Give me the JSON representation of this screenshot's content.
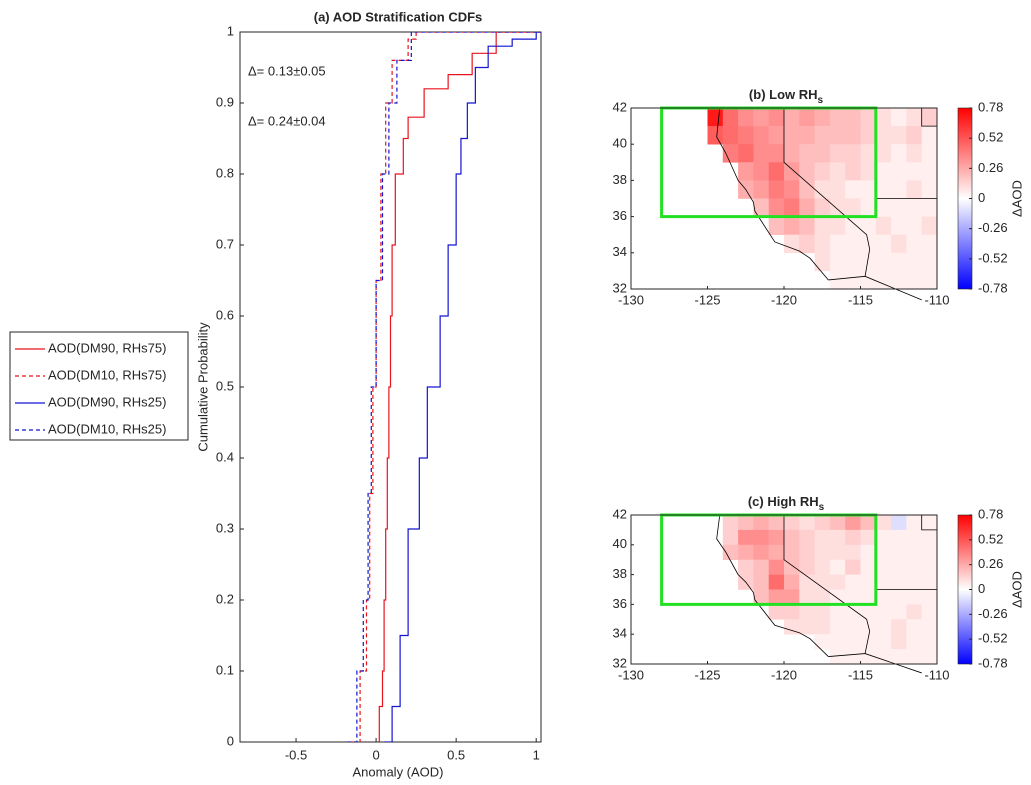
{
  "chart_data": [
    {
      "type": "step-line",
      "title": "(a) AOD Stratification CDFs",
      "x_label": "Anomaly (AOD)",
      "y_label": "Cumulative Probability",
      "xlim": [
        -0.85,
        1.03
      ],
      "ylim": [
        0,
        1
      ],
      "xticks": [
        -0.5,
        0,
        0.5,
        1
      ],
      "yticks": [
        0,
        0.1,
        0.2,
        0.3,
        0.4,
        0.5,
        0.6,
        0.7,
        0.8,
        0.9,
        1
      ],
      "legend": "outside-left",
      "series": [
        {
          "name": "AOD(DM90, RHs75)",
          "color": "#e8141c",
          "linestyle": "solid",
          "x": [
            0.02,
            0.02,
            0.04,
            0.05,
            0.06,
            0.07,
            0.08,
            0.09,
            0.1,
            0.12,
            0.17,
            0.2,
            0.3,
            0.45,
            0.6,
            0.75
          ],
          "values": [
            0,
            0.05,
            0.1,
            0.2,
            0.3,
            0.4,
            0.5,
            0.6,
            0.7,
            0.8,
            0.85,
            0.88,
            0.92,
            0.94,
            0.97,
            1
          ]
        },
        {
          "name": "AOD(DM10, RHs75)",
          "color": "#e8141c",
          "linestyle": "dashed",
          "x": [
            -0.15,
            -0.1,
            -0.06,
            -0.04,
            -0.02,
            0,
            0.03,
            0.06,
            0.1,
            0.2,
            0.25
          ],
          "values": [
            0,
            0.1,
            0.2,
            0.35,
            0.5,
            0.65,
            0.8,
            0.9,
            0.96,
            0.99,
            1
          ]
        },
        {
          "name": "AOD(DM90, RHs25)",
          "color": "#1414d2",
          "linestyle": "solid",
          "x": [
            0.05,
            0.1,
            0.15,
            0.2,
            0.27,
            0.32,
            0.4,
            0.45,
            0.5,
            0.53,
            0.57,
            0.62,
            0.7,
            0.85,
            1
          ],
          "values": [
            0,
            0.05,
            0.15,
            0.3,
            0.4,
            0.5,
            0.6,
            0.7,
            0.8,
            0.85,
            0.9,
            0.95,
            0.98,
            0.99,
            1
          ]
        },
        {
          "name": "AOD(DM10, RHs25)",
          "color": "#1414d2",
          "linestyle": "dashed",
          "x": [
            -0.18,
            -0.12,
            -0.08,
            -0.05,
            -0.03,
            0,
            0.04,
            0.08,
            0.13,
            0.22
          ],
          "values": [
            0,
            0.1,
            0.2,
            0.35,
            0.5,
            0.65,
            0.8,
            0.9,
            0.96,
            1
          ]
        }
      ],
      "annotations": [
        {
          "text": "Δ= 0.13±0.05",
          "color": "#e8141c"
        },
        {
          "text": "Δ= 0.24±0.04",
          "color": "#1414d2"
        }
      ]
    },
    {
      "type": "heatmap",
      "title": "(b) Low RH",
      "title_sub": "s",
      "colorbar_label": "ΔAOD",
      "colorbar_label_color": "#1414d2",
      "xlim": [
        -130,
        -110
      ],
      "ylim": [
        32,
        42
      ],
      "xticks": [
        -130,
        -125,
        -120,
        -115,
        -110
      ],
      "yticks": [
        32,
        34,
        36,
        38,
        40,
        42
      ],
      "clim": [
        -0.78,
        0.78
      ],
      "cticks": [
        0.78,
        0.52,
        0.26,
        0,
        -0.26,
        -0.52,
        -0.78
      ],
      "highlight_box": {
        "xlim": [
          -128,
          -114
        ],
        "ylim": [
          36,
          42
        ],
        "color": "#22e022"
      },
      "x": [
        -124.5,
        -123.5,
        -122.5,
        -121.5,
        -120.5,
        -119.5,
        -118.5,
        -117.5,
        -116.5,
        -115.5,
        -114.5,
        -113.5,
        -112.5,
        -111.5,
        -110.5
      ],
      "y": [
        41.5,
        40.5,
        39.5,
        38.5,
        37.5,
        36.5,
        35.5,
        34.5,
        33.5,
        32.5
      ],
      "values": [
        [
          0.7,
          0.45,
          0.35,
          0.3,
          0.35,
          0.25,
          0.3,
          0.25,
          0.2,
          0.2,
          0.15,
          0.1,
          0.05,
          0.1,
          0.15
        ],
        [
          0.5,
          0.45,
          0.4,
          0.35,
          0.3,
          0.25,
          0.25,
          0.2,
          0.2,
          0.2,
          0.15,
          0.1,
          0.1,
          0.15,
          0.05
        ],
        [
          null,
          0.4,
          0.45,
          0.35,
          0.35,
          0.25,
          0.2,
          0.2,
          0.15,
          0.15,
          0.1,
          0.1,
          0.05,
          0.1,
          0.05
        ],
        [
          null,
          null,
          0.3,
          0.35,
          0.45,
          0.3,
          0.2,
          0.15,
          0.1,
          0.15,
          0.1,
          0.05,
          0.05,
          0.05,
          0.05
        ],
        [
          null,
          null,
          0.25,
          0.3,
          0.4,
          0.35,
          0.2,
          0.1,
          0.1,
          0.05,
          0.05,
          0.05,
          0.05,
          0.1,
          0.05
        ],
        [
          null,
          null,
          null,
          0.2,
          0.35,
          0.4,
          0.25,
          0.15,
          0.1,
          0.1,
          0.05,
          0.05,
          0.05,
          0.05,
          0.05
        ],
        [
          null,
          null,
          null,
          null,
          0.2,
          0.25,
          0.2,
          0.1,
          0.1,
          0.05,
          0.05,
          0.1,
          0.05,
          0.05,
          0.1
        ],
        [
          null,
          null,
          null,
          null,
          null,
          0.1,
          0.15,
          0.1,
          0.05,
          0.05,
          0.05,
          0.05,
          0.1,
          0.05,
          0.05
        ],
        [
          null,
          null,
          null,
          null,
          null,
          null,
          null,
          0.1,
          0.05,
          0.05,
          0.05,
          0.05,
          0.05,
          0.05,
          0.05
        ],
        [
          null,
          null,
          null,
          null,
          null,
          null,
          null,
          null,
          0.05,
          0.05,
          0.05,
          0.05,
          0.05,
          0.05,
          0.05
        ]
      ]
    },
    {
      "type": "heatmap",
      "title": "(c) High RH",
      "title_sub": "s",
      "colorbar_label": "ΔAOD",
      "colorbar_label_color": "#e8141c",
      "xlim": [
        -130,
        -110
      ],
      "ylim": [
        32,
        42
      ],
      "xticks": [
        -130,
        -125,
        -120,
        -115,
        -110
      ],
      "yticks": [
        32,
        34,
        36,
        38,
        40,
        42
      ],
      "clim": [
        -0.78,
        0.78
      ],
      "cticks": [
        0.78,
        0.52,
        0.26,
        0,
        -0.26,
        -0.52,
        -0.78
      ],
      "highlight_box": {
        "xlim": [
          -128,
          -114
        ],
        "ylim": [
          36,
          42
        ],
        "color": "#22e022"
      },
      "x": [
        -124.5,
        -123.5,
        -122.5,
        -121.5,
        -120.5,
        -119.5,
        -118.5,
        -117.5,
        -116.5,
        -115.5,
        -114.5,
        -113.5,
        -112.5,
        -111.5,
        -110.5
      ],
      "y": [
        41.5,
        40.5,
        39.5,
        38.5,
        37.5,
        36.5,
        35.5,
        34.5,
        33.5,
        32.5
      ],
      "values": [
        [
          null,
          0.15,
          0.2,
          0.25,
          0.2,
          0.15,
          0.1,
          0.15,
          0.2,
          0.3,
          0.2,
          0.1,
          -0.1,
          0.05,
          0.05
        ],
        [
          null,
          0.15,
          0.35,
          0.35,
          0.3,
          0.2,
          0.15,
          0.1,
          0.1,
          0.15,
          0.1,
          0.05,
          0.05,
          0.05,
          0.05
        ],
        [
          null,
          0.2,
          0.25,
          0.3,
          0.25,
          0.2,
          0.15,
          0.1,
          0.1,
          0.1,
          0.05,
          0.05,
          0.05,
          0.05,
          0.05
        ],
        [
          null,
          null,
          0.15,
          0.2,
          0.35,
          0.2,
          0.15,
          0.1,
          0.05,
          0.15,
          0.05,
          0.05,
          0.05,
          0.05,
          0.05
        ],
        [
          null,
          null,
          0.15,
          0.2,
          0.45,
          0.25,
          0.1,
          0.1,
          0.1,
          0.05,
          0.05,
          0.05,
          0.05,
          0.05,
          0.05
        ],
        [
          null,
          null,
          null,
          0.2,
          0.3,
          0.3,
          0.1,
          0.1,
          0.05,
          0.05,
          0.05,
          0.05,
          0.05,
          0.05,
          0.05
        ],
        [
          null,
          null,
          null,
          null,
          0.15,
          0.15,
          0.1,
          0.1,
          0.05,
          0.05,
          0.05,
          0.05,
          0.05,
          0.1,
          0.05
        ],
        [
          null,
          null,
          null,
          null,
          null,
          0.1,
          0.1,
          0.1,
          0.05,
          0.05,
          0.05,
          0.05,
          0.1,
          0.05,
          0.05
        ],
        [
          null,
          null,
          null,
          null,
          null,
          null,
          null,
          0.05,
          0.05,
          0.05,
          0.05,
          0.05,
          0.1,
          0.05,
          0.05
        ],
        [
          null,
          null,
          null,
          null,
          null,
          null,
          null,
          null,
          0.05,
          0.05,
          0.05,
          0.05,
          0.05,
          0.05,
          0.05
        ]
      ]
    }
  ]
}
